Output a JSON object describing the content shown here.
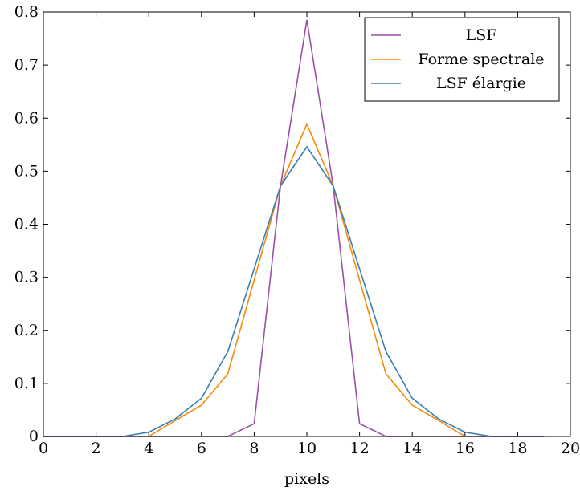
{
  "chart_data": {
    "type": "line",
    "title": "",
    "xlabel": "pixels",
    "ylabel": "",
    "xlim": [
      0,
      20
    ],
    "ylim": [
      0,
      0.8
    ],
    "xticks": [
      0,
      2,
      4,
      6,
      8,
      10,
      12,
      14,
      16,
      18,
      20
    ],
    "yticks": [
      0,
      0.1,
      0.2,
      0.3,
      0.4,
      0.5,
      0.6,
      0.7,
      0.8
    ],
    "xtick_labels": [
      "0",
      "2",
      "4",
      "6",
      "8",
      "10",
      "12",
      "14",
      "16",
      "18",
      "20"
    ],
    "ytick_labels": [
      "0",
      "0.1",
      "0.2",
      "0.3",
      "0.4",
      "0.5",
      "0.6",
      "0.7",
      "0.8"
    ],
    "grid": false,
    "legend_position": "top-right",
    "series": [
      {
        "name": "LSF",
        "color": "#9b4fa8",
        "x": [
          0,
          1,
          2,
          3,
          4,
          5,
          6,
          7,
          8,
          9,
          10,
          11,
          12,
          13,
          14,
          15,
          16,
          17,
          18,
          19
        ],
        "y": [
          0,
          0,
          0,
          0,
          0,
          0,
          0,
          0,
          0.024,
          0.472,
          0.785,
          0.472,
          0.024,
          0,
          0,
          0,
          0,
          0,
          0,
          0
        ]
      },
      {
        "name": "Forme spectrale",
        "color": "#f58a0a",
        "x": [
          4,
          5,
          6,
          7,
          8,
          9,
          10,
          11,
          12,
          13,
          14,
          15,
          16
        ],
        "y": [
          0,
          0.03,
          0.059,
          0.118,
          0.295,
          0.472,
          0.589,
          0.472,
          0.295,
          0.118,
          0.059,
          0.03,
          0
        ]
      },
      {
        "name": "LSF élargie",
        "color": "#3a7fb0",
        "x": [
          0,
          1,
          2,
          3,
          4,
          5,
          6,
          7,
          8,
          9,
          10,
          11,
          12,
          13,
          14,
          15,
          16,
          17,
          18,
          19
        ],
        "y": [
          0,
          0,
          0,
          0,
          0.008,
          0.033,
          0.072,
          0.16,
          0.316,
          0.472,
          0.546,
          0.472,
          0.316,
          0.16,
          0.072,
          0.033,
          0.008,
          0,
          0,
          0
        ]
      }
    ]
  }
}
